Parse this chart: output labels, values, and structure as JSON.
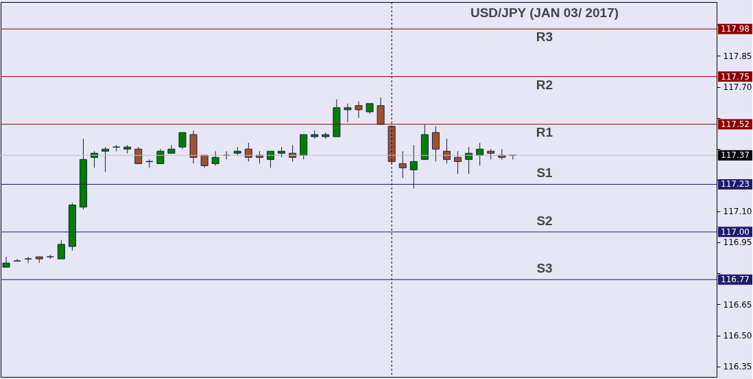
{
  "chart_data": {
    "type": "candlestick",
    "title": "USD/JPY (JAN 03/ 2017)",
    "categories": [
      null,
      null,
      null,
      null,
      null,
      null,
      null,
      null,
      null,
      null,
      null,
      null,
      null,
      null,
      null,
      null,
      null,
      null,
      null,
      null,
      null,
      null,
      null,
      null,
      null,
      null,
      null,
      null,
      null,
      null,
      null,
      null,
      null,
      null,
      null,
      null,
      null,
      null,
      null,
      null,
      null,
      null,
      null,
      null,
      null,
      null,
      null,
      null,
      null,
      null,
      null,
      null,
      null,
      null,
      null,
      null,
      null,
      null,
      null,
      null,
      null,
      null,
      null,
      null,
      null
    ],
    "ohlc": [
      [
        116.83,
        116.88,
        116.83,
        116.85
      ],
      [
        116.86,
        116.87,
        116.86,
        116.86
      ],
      [
        116.87,
        116.88,
        116.85,
        116.87
      ],
      [
        116.88,
        116.88,
        116.85,
        116.87
      ],
      [
        116.88,
        116.89,
        116.87,
        116.88
      ],
      [
        116.87,
        116.96,
        116.87,
        116.94
      ],
      [
        116.93,
        117.14,
        116.91,
        117.13
      ],
      [
        117.12,
        117.45,
        117.11,
        117.35
      ],
      [
        117.36,
        117.39,
        117.31,
        117.38
      ],
      [
        117.39,
        117.41,
        117.29,
        117.4
      ],
      [
        117.41,
        117.42,
        117.39,
        117.41
      ],
      [
        117.4,
        117.42,
        117.38,
        117.41
      ],
      [
        117.4,
        117.41,
        117.33,
        117.33
      ],
      [
        117.34,
        117.35,
        117.31,
        117.34
      ],
      [
        117.33,
        117.4,
        117.33,
        117.39
      ],
      [
        117.38,
        117.42,
        117.38,
        117.4
      ],
      [
        117.41,
        117.48,
        117.4,
        117.48
      ],
      [
        117.47,
        117.49,
        117.33,
        117.36
      ],
      [
        117.37,
        117.37,
        117.31,
        117.32
      ],
      [
        117.33,
        117.39,
        117.32,
        117.36
      ],
      [
        117.37,
        117.39,
        117.35,
        117.37
      ],
      [
        117.38,
        117.41,
        117.37,
        117.39
      ],
      [
        117.4,
        117.43,
        117.34,
        117.36
      ],
      [
        117.37,
        117.39,
        117.33,
        117.36
      ],
      [
        117.35,
        117.39,
        117.31,
        117.39
      ],
      [
        117.38,
        117.41,
        117.36,
        117.39
      ],
      [
        117.38,
        117.42,
        117.34,
        117.36
      ],
      [
        117.37,
        117.47,
        117.35,
        117.47
      ],
      [
        117.46,
        117.49,
        117.45,
        117.47
      ],
      [
        117.46,
        117.48,
        117.45,
        117.47
      ],
      [
        117.46,
        117.64,
        117.46,
        117.6
      ],
      [
        117.59,
        117.62,
        117.53,
        117.6
      ],
      [
        117.61,
        117.63,
        117.55,
        117.59
      ],
      [
        117.58,
        117.62,
        117.57,
        117.62
      ],
      [
        117.61,
        117.65,
        117.52,
        117.52
      ],
      [
        117.51,
        117.51,
        117.33,
        117.34
      ],
      [
        117.33,
        117.39,
        117.26,
        117.31
      ],
      [
        117.3,
        117.42,
        117.21,
        117.34
      ],
      [
        117.35,
        117.52,
        117.35,
        117.47
      ],
      [
        117.48,
        117.51,
        117.34,
        117.4
      ],
      [
        117.39,
        117.45,
        117.33,
        117.35
      ],
      [
        117.36,
        117.39,
        117.28,
        117.34
      ],
      [
        117.35,
        117.41,
        117.28,
        117.38
      ],
      [
        117.37,
        117.43,
        117.32,
        117.4
      ],
      [
        117.39,
        117.4,
        117.35,
        117.38
      ],
      [
        117.37,
        117.4,
        117.35,
        117.36
      ],
      [
        117.37,
        117.37,
        117.35,
        117.37
      ],
      null,
      null,
      null,
      null,
      null,
      null,
      null,
      null,
      null,
      null,
      null,
      null,
      null,
      null,
      null,
      null,
      null,
      null
    ],
    "ylim": [
      116.3,
      118.11
    ],
    "yticks": [
      {
        "value": 116.35,
        "label": "116.35"
      },
      {
        "value": 116.5,
        "label": "116.50"
      },
      {
        "value": 116.65,
        "label": "116.65"
      },
      {
        "value": 116.8,
        "label": null
      },
      {
        "value": 116.95,
        "label": "116.95"
      },
      {
        "value": 117.1,
        "label": "117.10"
      },
      {
        "value": 117.25,
        "label": null
      },
      {
        "value": 117.4,
        "label": null
      },
      {
        "value": 117.55,
        "label": null
      },
      {
        "value": 117.7,
        "label": "117.70"
      },
      {
        "value": 117.85,
        "label": "117.85"
      },
      {
        "value": 118.0,
        "label": null
      }
    ],
    "tick_labels": "y",
    "grid": false,
    "ref_lines": [
      {
        "axis": "y",
        "value": 117.98,
        "label": "117.98",
        "color": "#8b0000"
      },
      {
        "axis": "y",
        "value": 117.75,
        "label": "117.75",
        "color": "#8b0000"
      },
      {
        "axis": "y",
        "value": 117.52,
        "label": "117.52",
        "color": "#8b0000"
      },
      {
        "axis": "y",
        "value": 117.37,
        "label": "117.37",
        "color": "#c0c0c0"
      },
      {
        "axis": "y",
        "value": 117.23,
        "label": "117.23",
        "color": "#1c1c6e"
      },
      {
        "axis": "y",
        "value": 117.0,
        "label": "117.00",
        "color": "#1c1c6e"
      },
      {
        "axis": "y",
        "value": 116.77,
        "label": "116.77",
        "color": "#1c1c6e"
      }
    ],
    "annotations": [
      {
        "text": "R3",
        "y": 117.98
      },
      {
        "text": "R2",
        "y": 117.75
      },
      {
        "text": "R1",
        "y": 117.52
      },
      {
        "text": "S1",
        "y": 117.23
      },
      {
        "text": "S2",
        "y": 117.0
      },
      {
        "text": "S3",
        "y": 116.77
      }
    ]
  }
}
